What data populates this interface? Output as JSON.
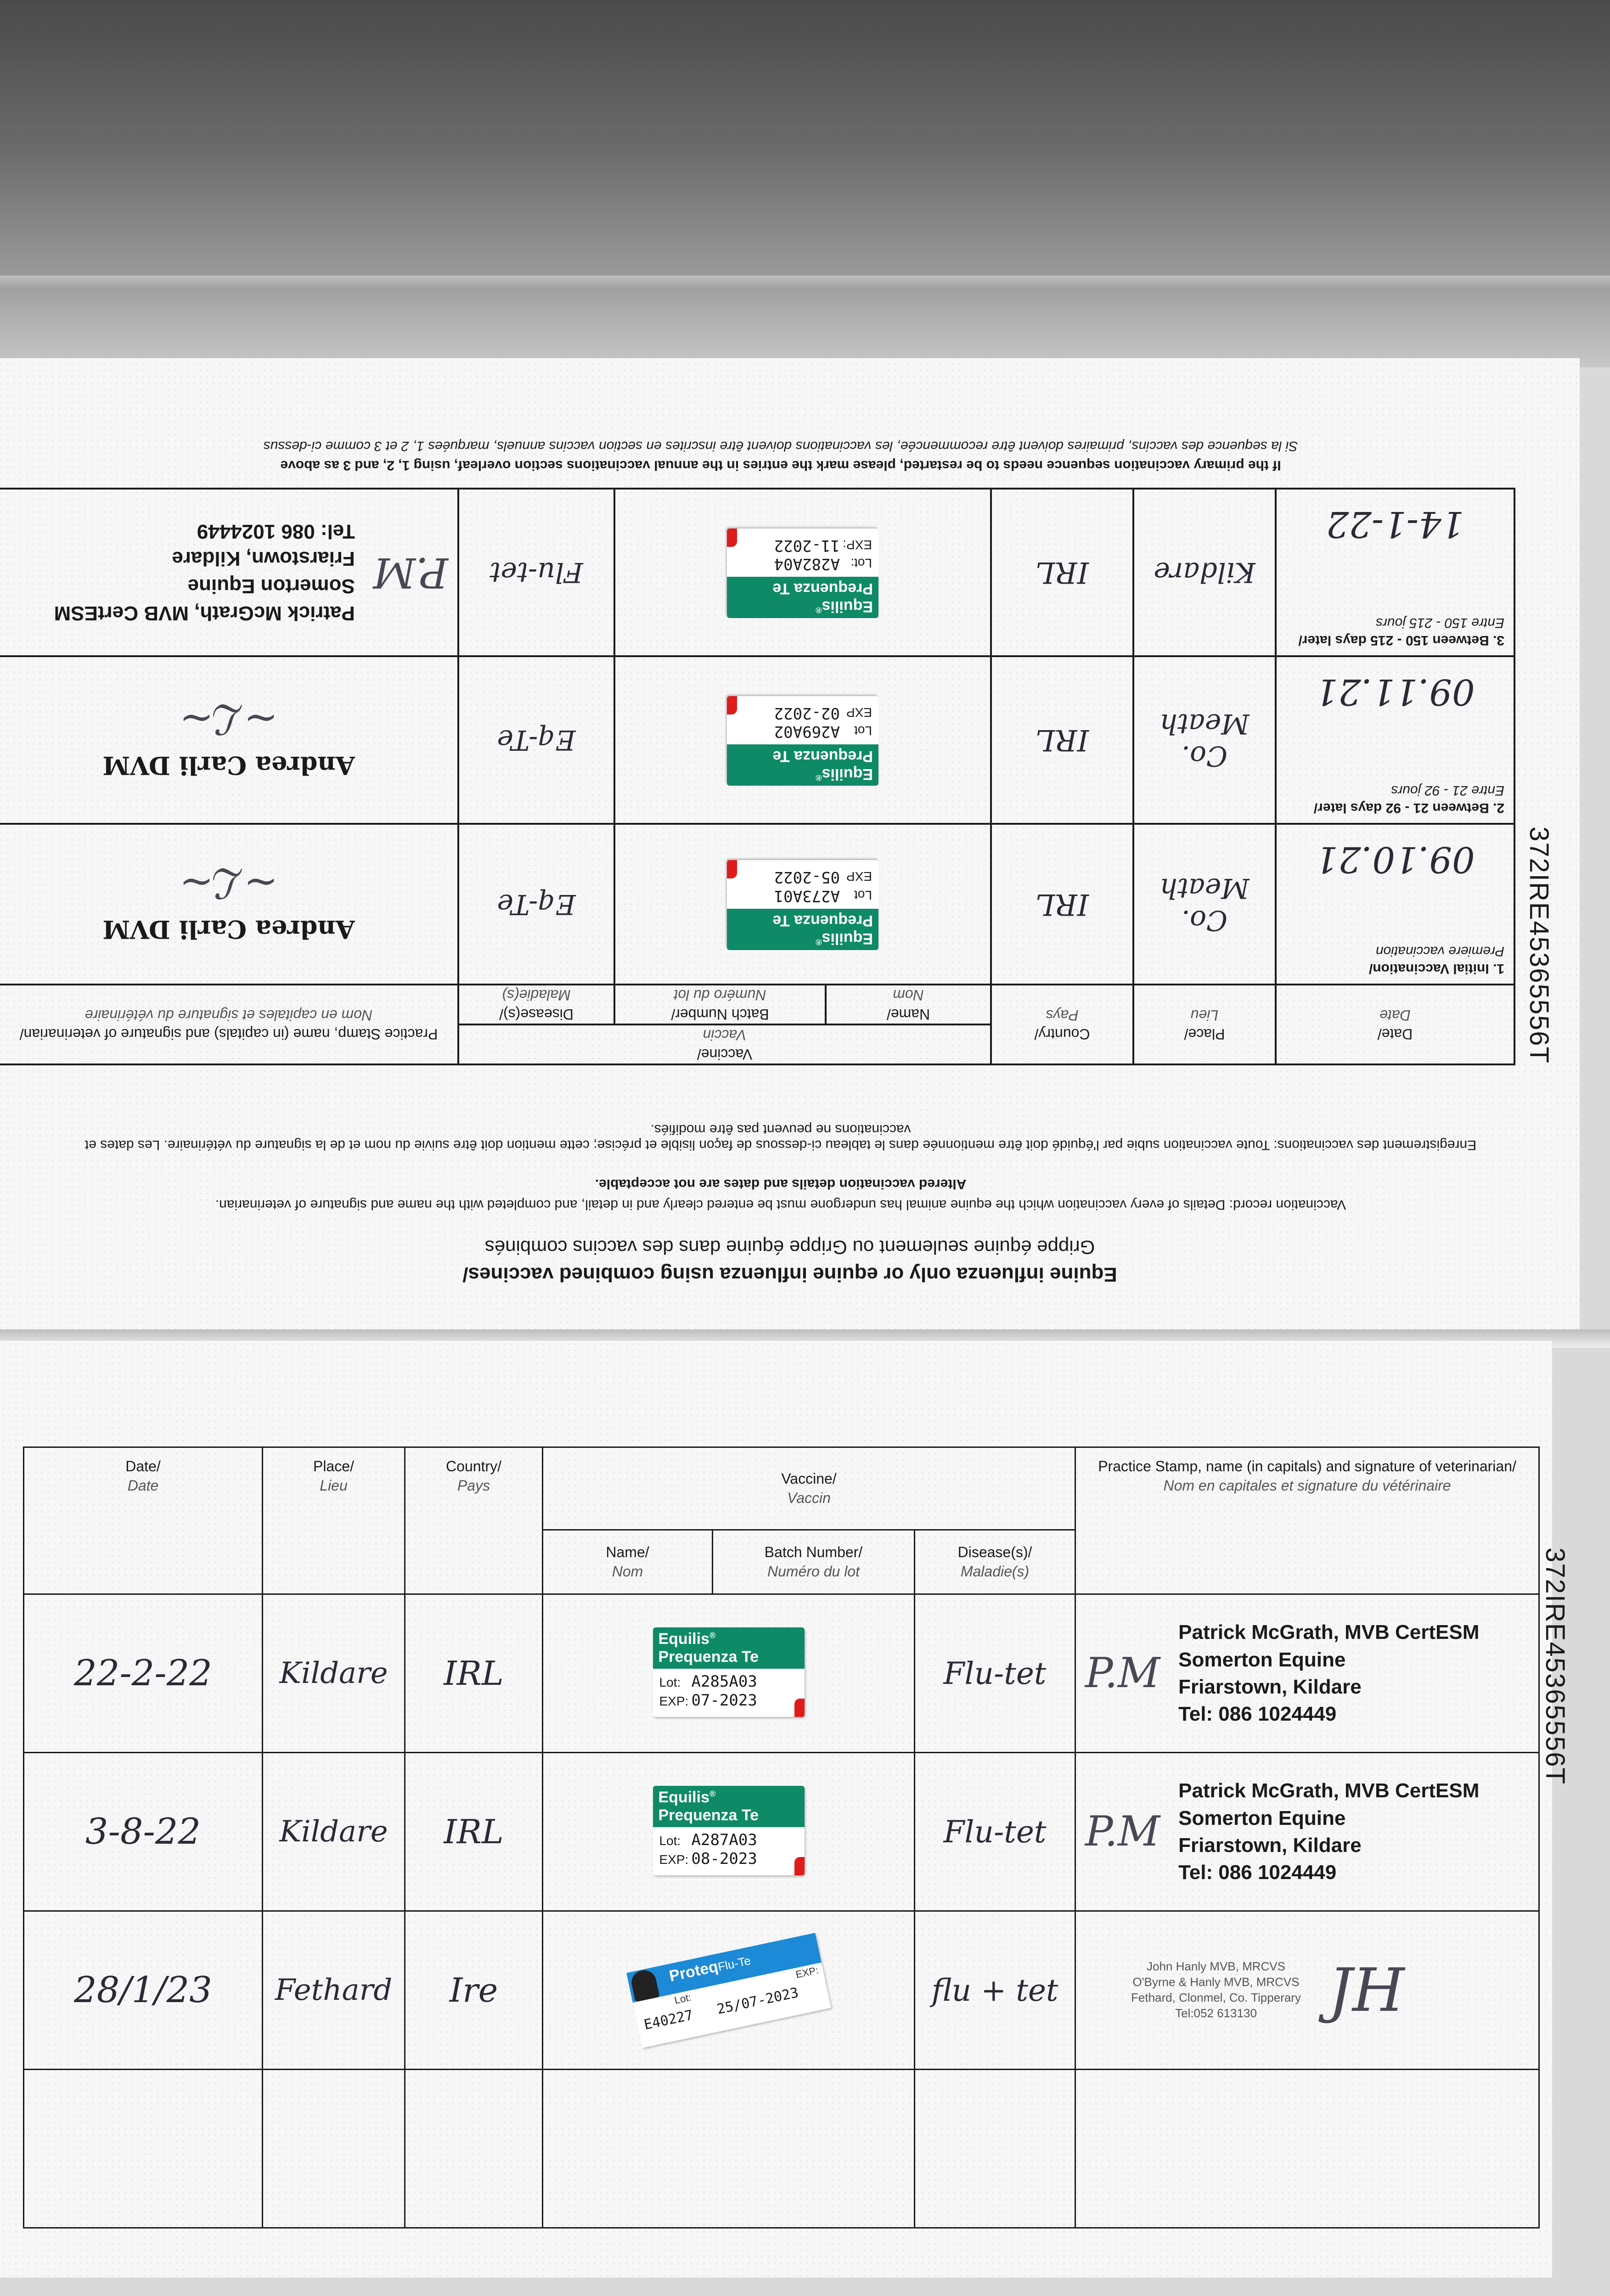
{
  "side_id": "372IRE45365556T",
  "upper_page": {
    "title": "Equine influenza only or equine influenza using combined vaccines/",
    "subtitle": "Grippe équine seulement ou Grippe équine dans des vaccins combinés",
    "record_note": "Vaccination record: Details of every vaccination which the equine animal has undergone must be entered clearly and in detail, and completed with the name and signature of veterinarian.",
    "altered_note": "Altered vaccination details and dates are not acceptable.",
    "record_note_fr": "Enregistrement des vaccinations: Toute vaccination subie par l'équidé doit être mentionnée dans le tableau ci-dessous de façon lisible et précise; cette mention doit être suivie du nom et de la signature du vétérinaire. Les dates et vaccinations ne peuvent pas être modifiés.",
    "headers": {
      "date": "Date/",
      "date_fr": "Date",
      "place": "Place/",
      "place_fr": "Lieu",
      "country": "Country/",
      "country_fr": "Pays",
      "vaccine": "Vaccine/",
      "vaccine_fr": "Vaccin",
      "name": "Name/",
      "name_fr": "Nom",
      "batch": "Batch Number/",
      "batch_fr": "Numéro du lot",
      "disease": "Disease(s)/",
      "disease_fr": "Maladie(s)",
      "stamp": "Practice Stamp, name (in capitals) and signature of veterinarian/",
      "stamp_fr": "Nom en capitales et signature du vétérinaire"
    },
    "rows": [
      {
        "stage": "1. Initial Vaccination/",
        "stage_fr": "Premiere vaccination",
        "date": "09.10.21",
        "place": "Co. Meath",
        "country": "IRL",
        "label": {
          "brand": "Equilis",
          "product": "Prequenza Te",
          "lot_key": "Lot",
          "lot": "A273A01",
          "exp_key": "EXP",
          "exp": "05-2022"
        },
        "disease": "Eq-Te",
        "stamp": [
          "Andrea Carli DVM"
        ]
      },
      {
        "stage": "2. Between 21 - 92 days later/",
        "stage_fr": "Entre 21 - 92 jours",
        "date": "09.11.21",
        "place": "Co. Meath",
        "country": "IRL",
        "label": {
          "brand": "Equilis",
          "product": "Prequenza Te",
          "lot_key": "Lot",
          "lot": "A269A02",
          "exp_key": "EXP",
          "exp": "02-2022"
        },
        "disease": "Eq-Te",
        "stamp": [
          "Andrea Carli DVM"
        ]
      },
      {
        "stage": "3. Between 150 - 215 days later/",
        "stage_fr": "Entre 150 - 215 jours",
        "date": "14-1-22",
        "place": "Kildare",
        "country": "IRL",
        "label": {
          "brand": "Equilis",
          "product": "Prequenza Te",
          "lot_key": "Lot:",
          "lot": "A282A04",
          "exp_key": "EXP:",
          "exp": "11-2022"
        },
        "disease": "Flu-tet",
        "stamp": [
          "Patrick McGrath, MVB CertESM",
          "Somerton Equine",
          "Friarstown, Kildare",
          "Tel: 086 1024449"
        ]
      }
    ],
    "restart_note": "If the primary vaccination sequence needs to be restarted, please mark the entries in the annual vaccinations section overleaf, using 1, 2, and 3 as above",
    "restart_note_fr": "Si la sequence des vaccins, primaires doivent être recommencée, les vaccinations doivent être inscrites en section vaccins annuels, marquées 1, 2 et 3 comme ci-dessus"
  },
  "lower_page": {
    "headers": {
      "date": "Date/",
      "date_fr": "Date",
      "place": "Place/",
      "place_fr": "Lieu",
      "country": "Country/",
      "country_fr": "Pays",
      "vaccine": "Vaccine/",
      "vaccine_fr": "Vaccin",
      "name": "Name/",
      "name_fr": "Nom",
      "batch": "Batch Number/",
      "batch_fr": "Numéro du lot",
      "disease": "Disease(s)/",
      "disease_fr": "Maladie(s)",
      "stamp": "Practice Stamp, name (in capitals) and signature of veterinarian/",
      "stamp_fr": "Nom en capitales et signature du vétérinaire"
    },
    "rows": [
      {
        "date": "22-2-22",
        "place": "Kildare",
        "country": "IRL",
        "label": {
          "brand": "Equilis",
          "product": "Prequenza Te",
          "lot_key": "Lot:",
          "lot": "A285A03",
          "exp_key": "EXP:",
          "exp": "07-2023"
        },
        "disease": "Flu-tet",
        "stamp": [
          "Patrick McGrath, MVB CertESM",
          "Somerton Equine",
          "Friarstown, Kildare",
          "Tel: 086 1024449"
        ]
      },
      {
        "date": "3-8-22",
        "place": "Kildare",
        "country": "IRL",
        "label": {
          "brand": "Equilis",
          "product": "Prequenza Te",
          "lot_key": "Lot:",
          "lot": "A287A03",
          "exp_key": "EXP:",
          "exp": "08-2023"
        },
        "disease": "Flu-tet",
        "stamp": [
          "Patrick McGrath, MVB CertESM",
          "Somerton Equine",
          "Friarstown, Kildare",
          "Tel: 086 1024449"
        ]
      },
      {
        "date": "28/1/23",
        "place": "Fethard",
        "country": "Ire",
        "proteq": {
          "brand": "Proteq",
          "product": "Flu-Te",
          "lot_key": "Lot:",
          "exp_key": "EXP:",
          "lot": "E40227",
          "exp": "25/07-2023"
        },
        "disease": "flu + tet",
        "stamp_small": [
          "John Hanly MVB, MRCVS",
          "O'Byrne & Hanly MVB, MRCVS",
          "Fethard, Clonmel, Co. Tipperary",
          "Tel:052 613130"
        ]
      },
      {
        "date": "",
        "place": "",
        "country": "",
        "disease": ""
      }
    ]
  },
  "colors": {
    "equilis_green": "#0f8a66",
    "proteq_blue": "#1c8ad6",
    "label_red_tab": "#e01b1b",
    "ink": "#2a2a35"
  }
}
